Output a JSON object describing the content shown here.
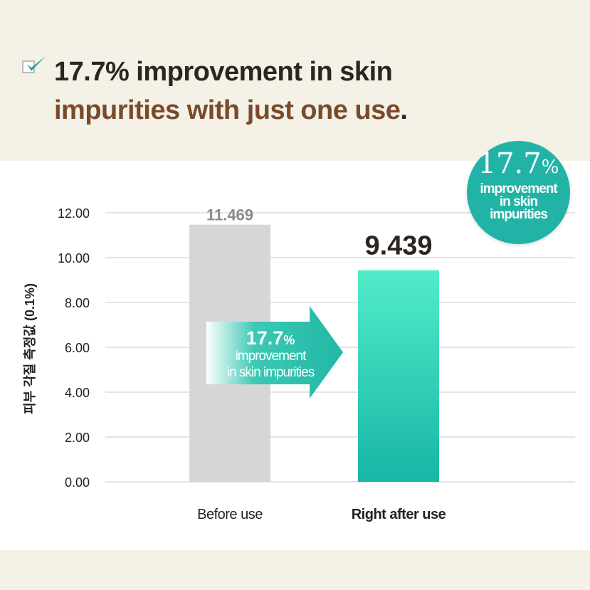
{
  "header": {
    "line1": "17.7% improvement in skin",
    "line2": "impurities with just one use",
    "line2_end": "."
  },
  "badge": {
    "number": "17.7",
    "percent": "%",
    "text1": "improvement",
    "text2": "in skin",
    "text3": "impurities"
  },
  "arrow": {
    "number": "17.7",
    "percent": "%",
    "text1": "improvement",
    "text2": "in skin impurities"
  },
  "colors": {
    "teal": "#21b3a5",
    "teal_light": "#52ecc9",
    "gray_bar": "#d6d6d6",
    "brown": "#7a4a2a",
    "cream": "#f4f1e7"
  },
  "icons": [
    "checkbox-check-icon"
  ],
  "chart_data": {
    "type": "bar",
    "categories": [
      "Before use",
      "Right after use"
    ],
    "values": [
      11.469,
      9.439
    ],
    "data_labels": [
      "11.469",
      "9.439"
    ],
    "ylabel": "피부 각질 측정값 (0.1%)",
    "ylim": [
      0,
      12
    ],
    "yticks": [
      "0.00",
      "2.00",
      "4.00",
      "6.00",
      "8.00",
      "10.00",
      "12.00"
    ],
    "grid": true
  }
}
